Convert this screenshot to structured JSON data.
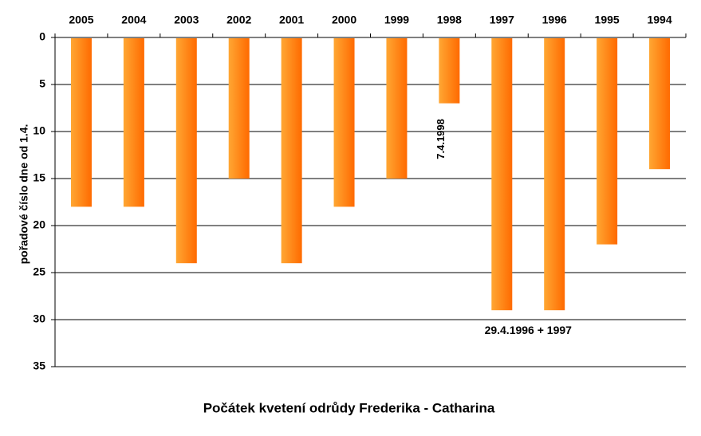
{
  "chart_data": {
    "type": "bar",
    "title": "Počátek kvetení odrůdy Frederika - Catharina",
    "ylabel": "pořadové číslo dne od 1.4.",
    "categories": [
      "1994",
      "1995",
      "1996",
      "1997",
      "1998",
      "1999",
      "2000",
      "2001",
      "2002",
      "2003",
      "2004",
      "2005"
    ],
    "values": [
      14,
      22,
      29,
      29,
      7,
      15,
      18,
      24,
      15,
      24,
      18,
      18
    ],
    "ylim": [
      0,
      35
    ],
    "yticks": [
      "0",
      "5",
      "10",
      "15",
      "20",
      "25",
      "30",
      "35"
    ],
    "y_inverted": true,
    "x_axis_position": "top",
    "annotations": [
      {
        "text": "7.4.1998",
        "category": "1998",
        "orientation": "vertical"
      },
      {
        "text": "29.4.1996 + 1997",
        "category": "1996-1997"
      }
    ],
    "mirrored_horizontally": true,
    "bar_color": "#ff8c00",
    "bar_gradient": [
      "#ff6a00",
      "#ffa733"
    ],
    "grid": true
  }
}
